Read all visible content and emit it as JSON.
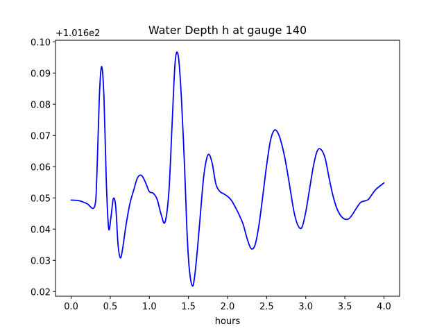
{
  "chart_data": {
    "type": "line",
    "title": "Water Depth h at gauge 140",
    "xlabel": "hours",
    "ylabel": "",
    "y_offset_label": "+1.016e2",
    "xlim": [
      -0.2,
      4.2
    ],
    "ylim": [
      0.0185,
      0.1005
    ],
    "x_ticks": [
      0.0,
      0.5,
      1.0,
      1.5,
      2.0,
      2.5,
      3.0,
      3.5,
      4.0
    ],
    "x_tick_labels": [
      "0.0",
      "0.5",
      "1.0",
      "1.5",
      "2.0",
      "2.5",
      "3.0",
      "3.5",
      "4.0"
    ],
    "y_ticks": [
      0.02,
      0.03,
      0.04,
      0.05,
      0.06,
      0.07,
      0.08,
      0.09,
      0.1
    ],
    "y_tick_labels": [
      "0.02",
      "0.03",
      "0.04",
      "0.05",
      "0.06",
      "0.07",
      "0.08",
      "0.09",
      "0.10"
    ],
    "grid": false,
    "line_color": "#0000ff",
    "series": [
      {
        "x": [
          0.0,
          0.1,
          0.2,
          0.3,
          0.33,
          0.36,
          0.39,
          0.42,
          0.45,
          0.48,
          0.51,
          0.54,
          0.57,
          0.6,
          0.63,
          0.66,
          0.7,
          0.75,
          0.8,
          0.85,
          0.9,
          0.95,
          1.0,
          1.05,
          1.1,
          1.15,
          1.2,
          1.25,
          1.29,
          1.33,
          1.37,
          1.41,
          1.45,
          1.48,
          1.51,
          1.55,
          1.58,
          1.62,
          1.66,
          1.7,
          1.75,
          1.8,
          1.85,
          1.9,
          1.95,
          2.0,
          2.05,
          2.1,
          2.15,
          2.2,
          2.25,
          2.3,
          2.35,
          2.4,
          2.45,
          2.5,
          2.55,
          2.6,
          2.65,
          2.7,
          2.75,
          2.8,
          2.85,
          2.9,
          2.95,
          3.0,
          3.05,
          3.1,
          3.15,
          3.2,
          3.25,
          3.3,
          3.35,
          3.4,
          3.45,
          3.5,
          3.55,
          3.6,
          3.65,
          3.7,
          3.75,
          3.8,
          3.85,
          3.9,
          4.0
        ],
        "y": [
          0.0493,
          0.0491,
          0.0482,
          0.0472,
          0.058,
          0.082,
          0.0921,
          0.082,
          0.055,
          0.0402,
          0.044,
          0.0498,
          0.0472,
          0.035,
          0.0308,
          0.034,
          0.041,
          0.048,
          0.0525,
          0.0565,
          0.0572,
          0.055,
          0.052,
          0.0515,
          0.0495,
          0.0448,
          0.0422,
          0.052,
          0.073,
          0.0935,
          0.0955,
          0.082,
          0.06,
          0.04,
          0.0275,
          0.0218,
          0.025,
          0.035,
          0.047,
          0.0578,
          0.0638,
          0.0615,
          0.0545,
          0.0521,
          0.0513,
          0.0505,
          0.0492,
          0.047,
          0.0445,
          0.0415,
          0.037,
          0.0338,
          0.0348,
          0.041,
          0.0505,
          0.0605,
          0.0685,
          0.0717,
          0.0705,
          0.0665,
          0.0605,
          0.053,
          0.0455,
          0.0412,
          0.0405,
          0.0455,
          0.053,
          0.0605,
          0.0652,
          0.0654,
          0.0625,
          0.0562,
          0.0505,
          0.0465,
          0.0442,
          0.0432,
          0.0433,
          0.0448,
          0.0468,
          0.0485,
          0.049,
          0.0495,
          0.0512,
          0.0528,
          0.0548
        ]
      }
    ]
  }
}
